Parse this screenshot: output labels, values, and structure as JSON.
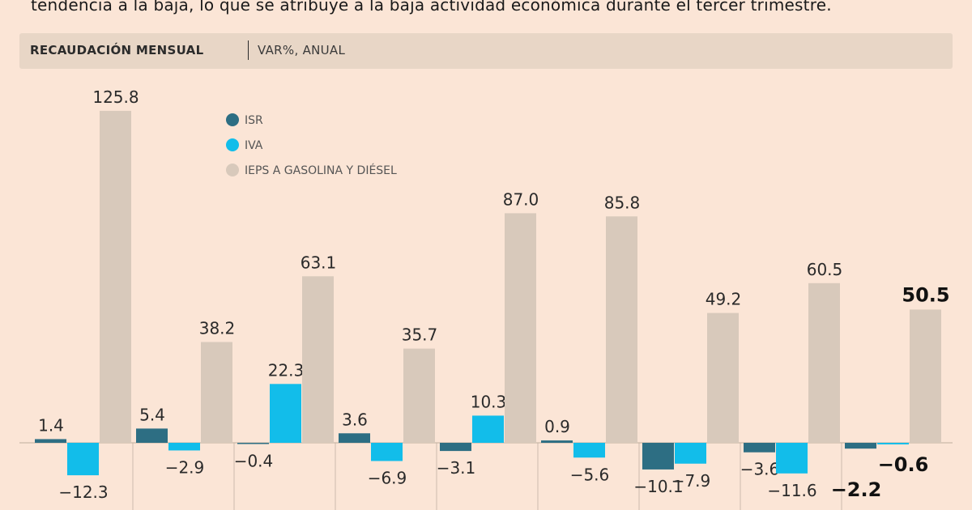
{
  "intro_text": "tendencia a la baja, lo que se atribuye a la baja actividad económica durante el tercer trimestre.",
  "header": {
    "title": "RECAUDACIÓN MENSUAL",
    "subtitle": "VAR%, ANUAL"
  },
  "colors": {
    "ISR": "#2d6e83",
    "IVA": "#12bdea",
    "IEPS": "#d8c9bb",
    "background": "#fbe5d6"
  },
  "chart_data": {
    "type": "bar",
    "title": "RECAUDACIÓN MENSUAL",
    "ylabel": "VAR%, ANUAL",
    "xlabel": "",
    "categories": [
      "",
      "",
      "",
      "",
      "",
      "",
      "",
      "",
      ""
    ],
    "series": [
      {
        "name": "ISR",
        "key": "ISR",
        "values": [
          1.4,
          5.4,
          -0.4,
          3.6,
          -3.1,
          0.9,
          -10.1,
          -3.6,
          -2.2
        ]
      },
      {
        "name": "IVA",
        "key": "IVA",
        "values": [
          -12.3,
          -2.9,
          22.3,
          -6.9,
          10.3,
          -5.6,
          -7.9,
          -11.6,
          -0.6
        ]
      },
      {
        "name": "IEPS A GASOLINA Y DIÉSEL",
        "key": "IEPS",
        "values": [
          125.8,
          38.2,
          63.1,
          35.7,
          87.0,
          85.8,
          49.2,
          60.5,
          50.5
        ]
      }
    ],
    "labels": {
      "ISR": [
        "1.4",
        "5.4",
        "-0.4",
        "3.6",
        "-3.1",
        "0.9",
        "-10.1",
        "-3.6",
        "-2.2"
      ],
      "IVA": [
        "-12.3",
        "-2.9",
        "22.3",
        "-6.9",
        "10.3",
        "-5.6",
        "-7.9",
        "-11.6",
        "-0.6"
      ],
      "IEPS": [
        "125.8",
        "38.2",
        "63.1",
        "35.7",
        "87.0",
        "85.8",
        "49.2",
        "60.5",
        "50.5"
      ]
    },
    "highlight_last_group": true,
    "legend": [
      "ISR",
      "IVA",
      "IEPS A GASOLINA Y DIÉSEL"
    ],
    "legend_position": "top-left",
    "grid": false
  }
}
